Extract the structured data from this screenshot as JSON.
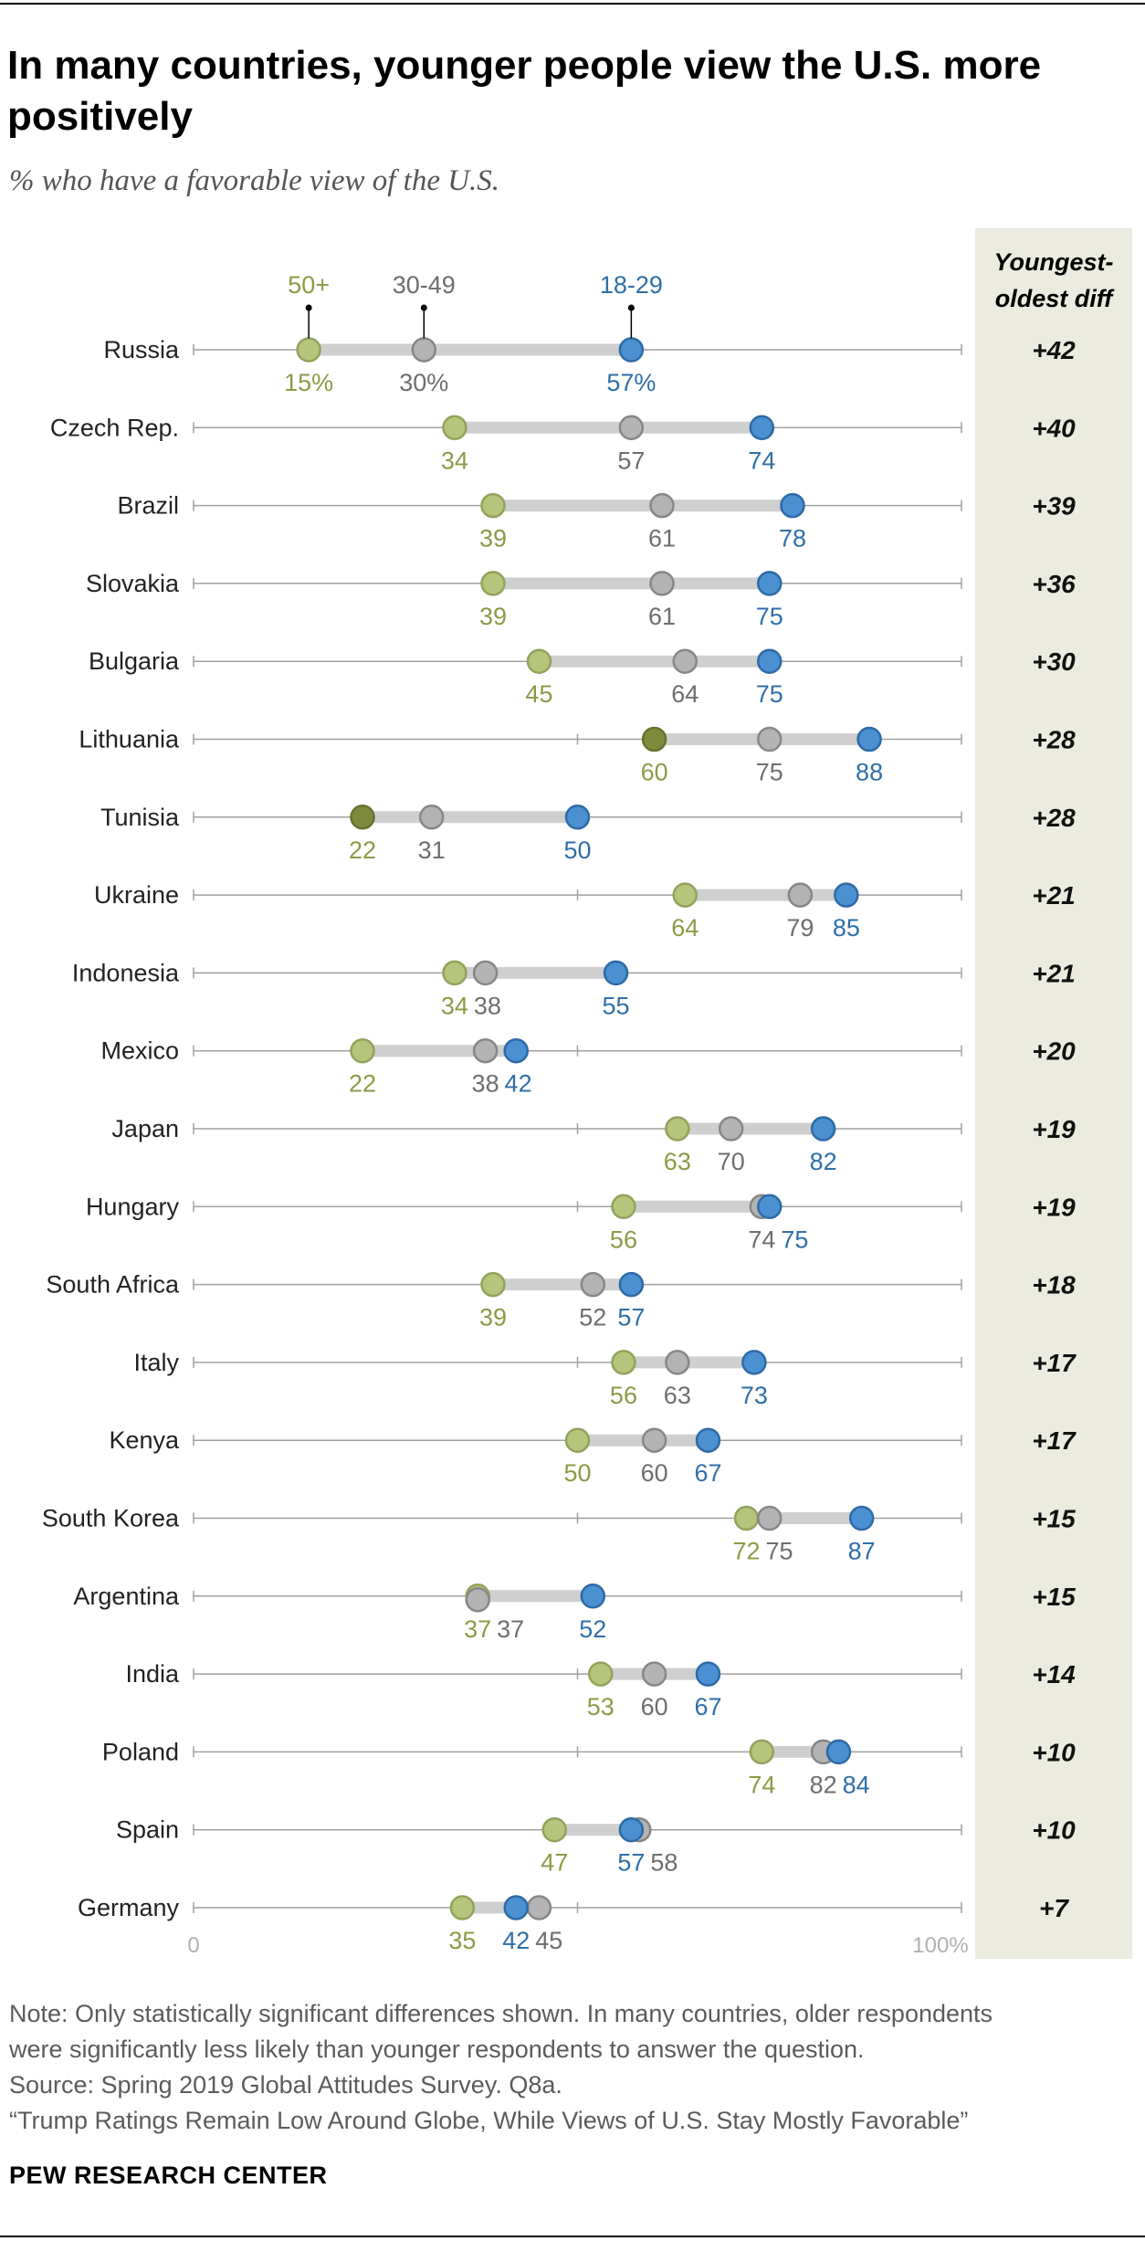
{
  "title": "In many countries, younger people view the U.S. more positively",
  "subtitle": "% who have a favorable view of the U.S.",
  "diff_header": [
    "Youngest-",
    "oldest diff"
  ],
  "note": "Note: Only statistically significant differences shown. In many countries, older respondents were significantly less likely than younger respondents to answer the question.",
  "source": "Source: Spring 2019 Global Attitudes Survey. Q8a.",
  "report": "“Trump Ratings Remain Low Around Globe, While Views of U.S. Stay Mostly Favorable”",
  "brand": "PEW RESEARCH CENTER",
  "colors": {
    "age_50_plus": "#b5c57c",
    "age_50_plus_dark": "#7d8b3c",
    "age_30_49": "#b3b3b3",
    "age_18_29": "#4b90d0",
    "label_50_plus": "#8c9a45",
    "label_30_49": "#6e6e6e",
    "label_18_29": "#2f6fa8",
    "diff_panel": "#ebebdf"
  },
  "chart_data": {
    "type": "dot",
    "xlim": [
      0,
      100
    ],
    "x_tick_labels": [
      "0",
      "100%"
    ],
    "series": [
      {
        "name": "50+",
        "key": "old"
      },
      {
        "name": "30-49",
        "key": "mid"
      },
      {
        "name": "18-29",
        "key": "young"
      }
    ],
    "first_row_value_labels": [
      "15%",
      "30%",
      "57%"
    ],
    "rows": [
      {
        "country": "Russia",
        "old": 15,
        "mid": 30,
        "young": 57,
        "diff": "+42"
      },
      {
        "country": "Czech Rep.",
        "old": 34,
        "mid": 57,
        "young": 74,
        "diff": "+40"
      },
      {
        "country": "Brazil",
        "old": 39,
        "mid": 61,
        "young": 78,
        "diff": "+39"
      },
      {
        "country": "Slovakia",
        "old": 39,
        "mid": 61,
        "young": 75,
        "diff": "+36"
      },
      {
        "country": "Bulgaria",
        "old": 45,
        "mid": 64,
        "young": 75,
        "diff": "+30"
      },
      {
        "country": "Lithuania",
        "old": 60,
        "mid": 75,
        "young": 88,
        "diff": "+28",
        "old_dark": true
      },
      {
        "country": "Tunisia",
        "old": 22,
        "mid": 31,
        "young": 50,
        "diff": "+28",
        "old_dark": true
      },
      {
        "country": "Ukraine",
        "old": 64,
        "mid": 79,
        "young": 85,
        "diff": "+21"
      },
      {
        "country": "Indonesia",
        "old": 34,
        "mid": 38,
        "young": 55,
        "diff": "+21"
      },
      {
        "country": "Mexico",
        "old": 22,
        "mid": 38,
        "young": 42,
        "diff": "+20"
      },
      {
        "country": "Japan",
        "old": 63,
        "mid": 70,
        "young": 82,
        "diff": "+19"
      },
      {
        "country": "Hungary",
        "old": 56,
        "mid": 74,
        "young": 75,
        "diff": "+19"
      },
      {
        "country": "South Africa",
        "old": 39,
        "mid": 52,
        "young": 57,
        "diff": "+18"
      },
      {
        "country": "Italy",
        "old": 56,
        "mid": 63,
        "young": 73,
        "diff": "+17"
      },
      {
        "country": "Kenya",
        "old": 50,
        "mid": 60,
        "young": 67,
        "diff": "+17"
      },
      {
        "country": "South Korea",
        "old": 72,
        "mid": 75,
        "young": 87,
        "diff": "+15"
      },
      {
        "country": "Argentina",
        "old": 37,
        "mid": 37,
        "young": 52,
        "diff": "+15"
      },
      {
        "country": "India",
        "old": 53,
        "mid": 60,
        "young": 67,
        "diff": "+14"
      },
      {
        "country": "Poland",
        "old": 74,
        "mid": 82,
        "young": 84,
        "diff": "+10"
      },
      {
        "country": "Spain",
        "old": 47,
        "mid": 58,
        "young": 57,
        "diff": "+10"
      },
      {
        "country": "Germany",
        "old": 35,
        "mid": 45,
        "young": 42,
        "diff": "+7"
      }
    ]
  }
}
